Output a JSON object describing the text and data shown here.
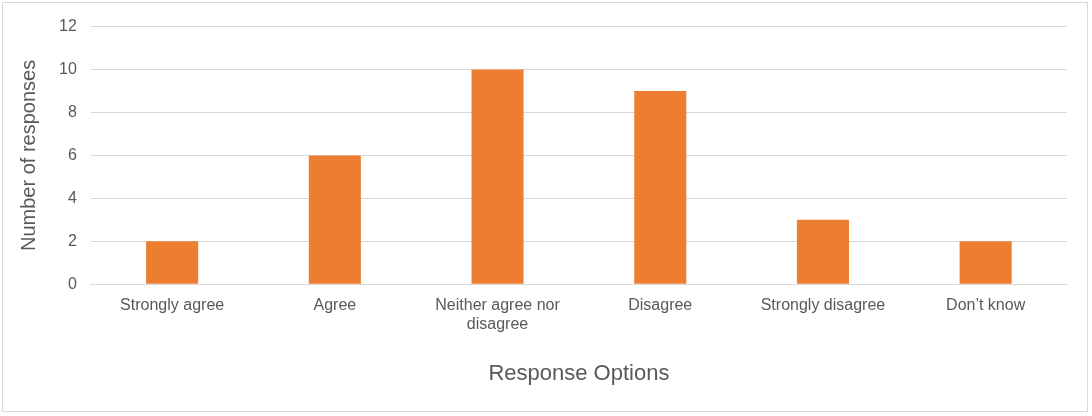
{
  "chart_data": {
    "type": "bar",
    "categories": [
      "Strongly agree",
      "Agree",
      "Neither agree nor disagree",
      "Disagree",
      "Strongly disagree",
      "Don’t know"
    ],
    "values": [
      2,
      6,
      10,
      9,
      3,
      2
    ],
    "color": "#ed7d31",
    "xlabel": "Response Options",
    "ylabel": "Number of responses",
    "ylim": [
      0,
      12
    ],
    "yticks": [
      0,
      2,
      4,
      6,
      8,
      10,
      12
    ],
    "grid": "y",
    "legend": false
  }
}
